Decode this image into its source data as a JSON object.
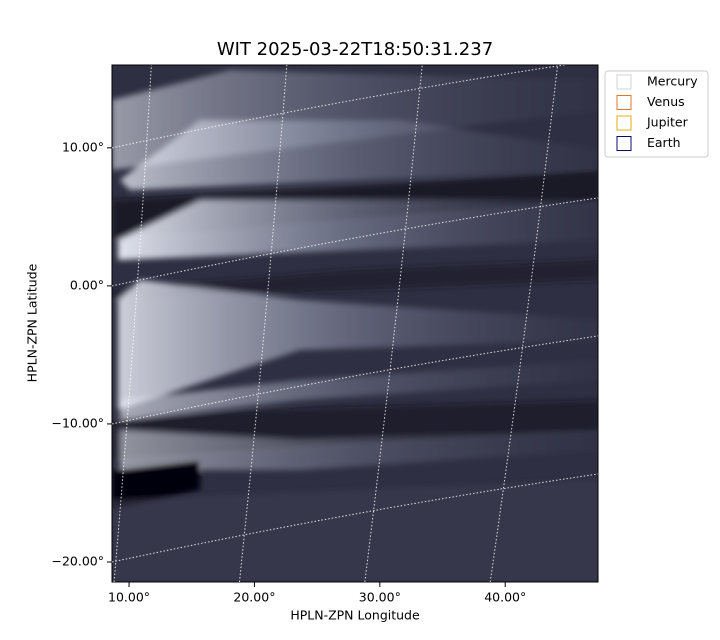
{
  "chart_data": {
    "type": "image",
    "title": "WIT 2025-03-22T18:50:31.237",
    "x_label": "HPLN-ZPN Longitude",
    "y_label": "HPLN-ZPN Latitude",
    "xlim": [
      8.64,
      47.4
    ],
    "ylim": [
      -21.45,
      16.0
    ],
    "xticks": [
      {
        "value": 10,
        "label": "10.00°"
      },
      {
        "value": 20,
        "label": "20.00°"
      },
      {
        "value": 30,
        "label": "30.00°"
      },
      {
        "value": 40,
        "label": "40.00°"
      }
    ],
    "yticks": [
      {
        "value": 10,
        "label": "10.00°"
      },
      {
        "value": 0,
        "label": "0.00°"
      },
      {
        "value": -10,
        "label": "−10.00°"
      },
      {
        "value": -20,
        "label": "−20.00°"
      }
    ],
    "grid": true,
    "legend_position": "upper right",
    "legend": [
      {
        "name": "Mercury",
        "color": "#d3d3d3"
      },
      {
        "name": "Venus",
        "color": "#e0772d"
      },
      {
        "name": "Jupiter",
        "color": "#e6a817"
      },
      {
        "name": "Earth",
        "color": "#0a0a70"
      }
    ]
  }
}
